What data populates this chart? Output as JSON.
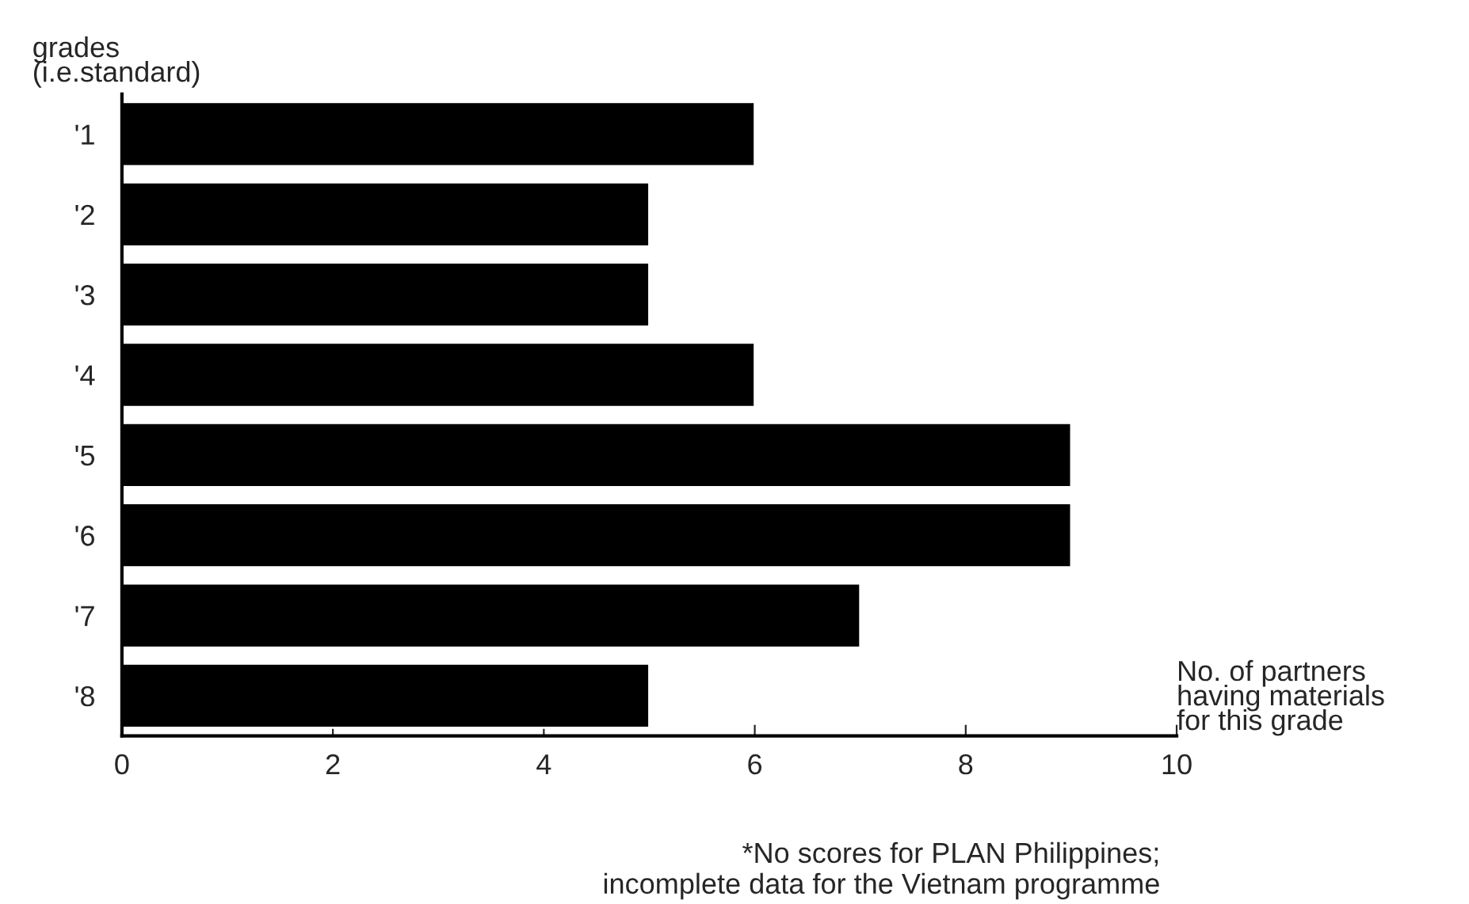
{
  "chart_data": {
    "type": "bar",
    "orientation": "horizontal",
    "categories": [
      "'1",
      "'2",
      "'3",
      "'4",
      "'5",
      "'6",
      "'7",
      "'8"
    ],
    "values": [
      6,
      5,
      5,
      6,
      9,
      9,
      7,
      5
    ],
    "color": "#000000",
    "xlim": [
      0,
      10
    ],
    "xticks": [
      0,
      2,
      4,
      6,
      8,
      10
    ],
    "xlabel": "No. of partners\nhaving materials\nfor this grade",
    "ylabel": "grades\n(i.e.standard)",
    "annotations": [
      "*No scores for PLAN Philippines;\nincomplete data for the Vietnam programme"
    ],
    "grid": false,
    "legend": false
  }
}
